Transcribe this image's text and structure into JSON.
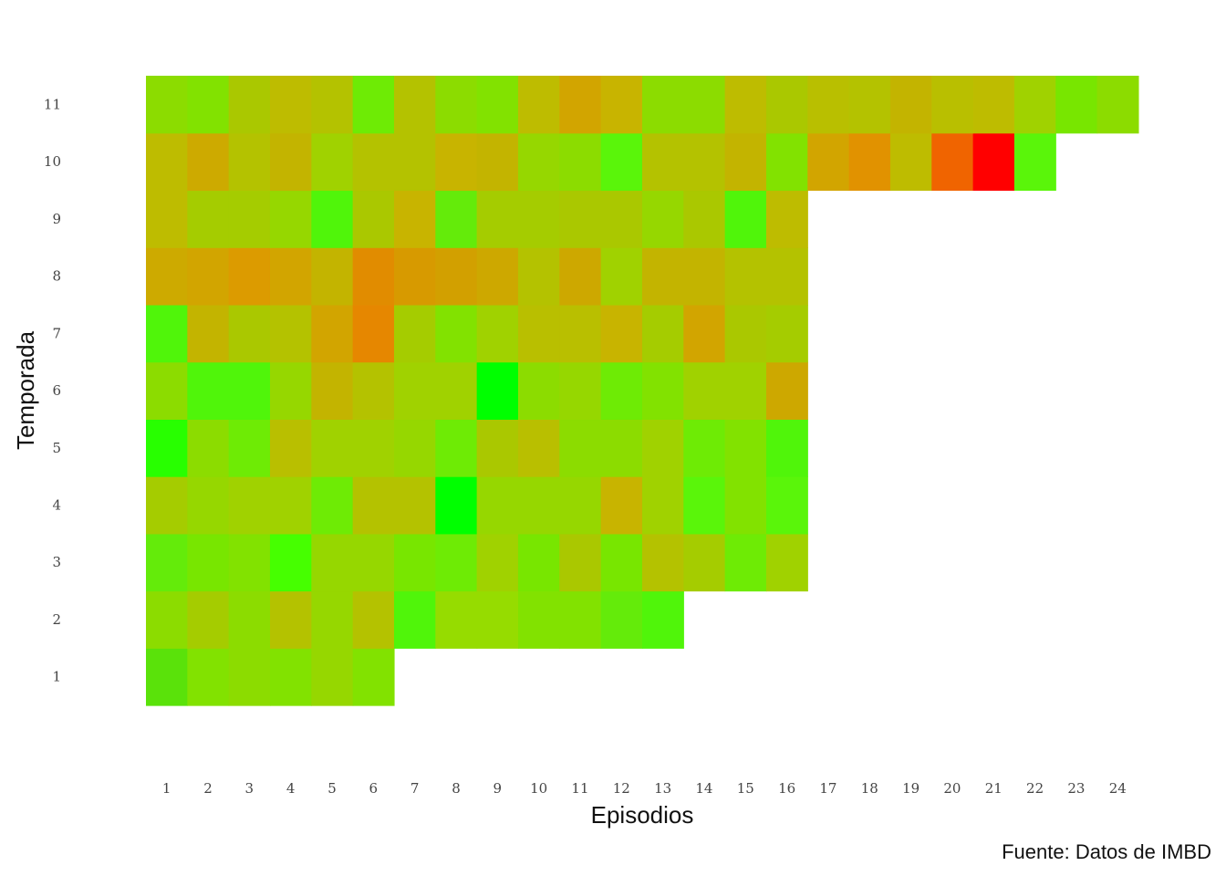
{
  "chart_data": {
    "type": "heatmap",
    "xlabel": "Episodios",
    "ylabel": "Temporada",
    "caption": "Fuente: Datos de IMBD",
    "x_ticks": [
      "1",
      "2",
      "3",
      "4",
      "5",
      "6",
      "7",
      "8",
      "9",
      "10",
      "11",
      "12",
      "13",
      "14",
      "15",
      "16",
      "17",
      "18",
      "19",
      "20",
      "21",
      "22",
      "23",
      "24"
    ],
    "y_ticks": [
      "1",
      "2",
      "3",
      "4",
      "5",
      "6",
      "7",
      "8",
      "9",
      "10",
      "11"
    ],
    "grid": false,
    "legend": "none",
    "rows": [
      {
        "season": 1,
        "colors": [
          "#5ae20a",
          "#82e200",
          "#8cdc00",
          "#82e200",
          "#96d700",
          "#82e200"
        ]
      },
      {
        "season": 2,
        "colors": [
          "#8cdc00",
          "#a5cc00",
          "#8cdc00",
          "#b4c200",
          "#96d700",
          "#b4c200",
          "#50f50a",
          "#96dc00",
          "#96dc00",
          "#82e200",
          "#82e200",
          "#64eb0a",
          "#50f50a"
        ]
      },
      {
        "season": 3,
        "colors": [
          "#64eb0a",
          "#78e600",
          "#82e200",
          "#46ff00",
          "#96d700",
          "#96d700",
          "#78e600",
          "#6eeb05",
          "#a0d200",
          "#78e600",
          "#aac800",
          "#78e600",
          "#b4c200",
          "#a5cc00",
          "#6eeb05",
          "#a0d200"
        ]
      },
      {
        "season": 4,
        "colors": [
          "#a5cc00",
          "#96d700",
          "#a0d200",
          "#a0d200",
          "#6eeb05",
          "#b4c200",
          "#b4c200",
          "#00ff00",
          "#96d700",
          "#96d700",
          "#96d700",
          "#c8b400",
          "#a0d200",
          "#5af50a",
          "#82e200",
          "#5af50a"
        ]
      },
      {
        "season": 5,
        "colors": [
          "#28ff00",
          "#8cdc00",
          "#6eeb05",
          "#b9bf00",
          "#a0d200",
          "#a0d200",
          "#96d700",
          "#6eeb05",
          "#aac800",
          "#b9bf00",
          "#8cdc00",
          "#8cdc00",
          "#a0d200",
          "#6eeb05",
          "#82e200",
          "#50f50a"
        ]
      },
      {
        "season": 6,
        "colors": [
          "#8cdc00",
          "#50f50a",
          "#50f50a",
          "#96d700",
          "#c3b400",
          "#b4c200",
          "#a0d200",
          "#a0d200",
          "#00ff00",
          "#8cdc00",
          "#96d700",
          "#6eeb05",
          "#82e200",
          "#a0d200",
          "#a0d200",
          "#cda800"
        ]
      },
      {
        "season": 7,
        "colors": [
          "#50f50a",
          "#c3b400",
          "#aac800",
          "#b4c200",
          "#d2a500",
          "#e68700",
          "#a5cc00",
          "#82e200",
          "#a0d200",
          "#b9bf00",
          "#b9bf00",
          "#c8b400",
          "#a5cc00",
          "#d2a500",
          "#aac800",
          "#a5cc00"
        ]
      },
      {
        "season": 8,
        "colors": [
          "#cdaa00",
          "#d2a500",
          "#dc9b00",
          "#d2a500",
          "#c3b400",
          "#e18c00",
          "#d79a00",
          "#d2a000",
          "#cda800",
          "#b4c200",
          "#cda800",
          "#a0d200",
          "#c3b400",
          "#c3b400",
          "#b4c200",
          "#b4c200"
        ]
      },
      {
        "season": 9,
        "colors": [
          "#bebc00",
          "#a5cc00",
          "#a5cc00",
          "#96d700",
          "#50f50a",
          "#aac800",
          "#c8b400",
          "#64eb0a",
          "#a5cc00",
          "#a5cc00",
          "#aac800",
          "#aac800",
          "#96d700",
          "#aac800",
          "#50f50a",
          "#bebc00"
        ]
      },
      {
        "season": 10,
        "colors": [
          "#bebc00",
          "#cdaa00",
          "#b4c200",
          "#c3b400",
          "#a0d200",
          "#b4c200",
          "#b4c200",
          "#c8b400",
          "#c3b400",
          "#96d700",
          "#8cdc00",
          "#5af50a",
          "#b4c200",
          "#b4c200",
          "#c3b400",
          "#82e200",
          "#d2a500",
          "#e19200",
          "#bebc00",
          "#f06400",
          "#ff0000",
          "#5af50a"
        ]
      },
      {
        "season": 11,
        "colors": [
          "#8cdc00",
          "#82e200",
          "#aac800",
          "#bebc00",
          "#b4c200",
          "#6eeb05",
          "#b4c200",
          "#8cdc00",
          "#82e200",
          "#bebc00",
          "#d2a500",
          "#c8b400",
          "#8cdc00",
          "#8cdc00",
          "#bebc00",
          "#aac800",
          "#b9bf00",
          "#b4c200",
          "#c3b400",
          "#b9bf00",
          "#bebc00",
          "#a0d200",
          "#78e600",
          "#8cdc00"
        ]
      }
    ]
  }
}
